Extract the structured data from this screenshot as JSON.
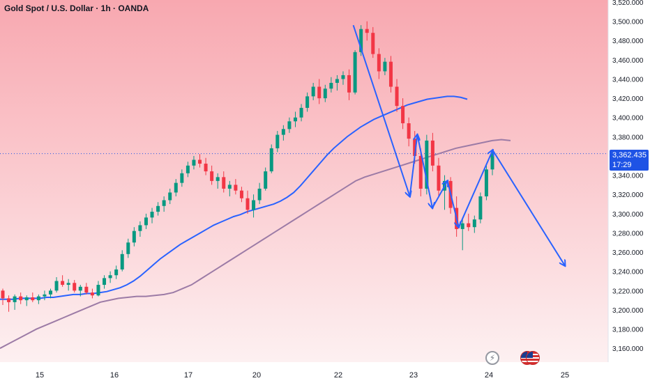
{
  "header": {
    "title": "Gold Spot / U.S. Dollar · 1h · OANDA"
  },
  "price_badge": {
    "price": "3,362.435",
    "countdown": "17:29",
    "color": "#1e53e5"
  },
  "colors": {
    "up": "#089981",
    "down": "#f23645",
    "ma_fast": "#2962ff",
    "ma_slow": "#9c7ba6",
    "annotation": "#2962ff",
    "background_top": "#f8a8b0",
    "background_bottom": "#fdf0f1"
  },
  "icons": [
    "flash-icon",
    "us-flag-icon",
    "us-flag-icon"
  ],
  "chart_data": {
    "type": "candlestick",
    "title": "Gold Spot / U.S. Dollar · 1h · OANDA",
    "ylim": [
      3150,
      3520
    ],
    "y_ticks": [
      3160,
      3180,
      3200,
      3220,
      3240,
      3260,
      3280,
      3300,
      3320,
      3340,
      3360,
      3380,
      3400,
      3420,
      3440,
      3460,
      3480,
      3500,
      3520
    ],
    "y_tick_labels": [
      "3,160.000",
      "3,180.000",
      "3,200.000",
      "3,220.000",
      "3,240.000",
      "3,260.000",
      "3,280.000",
      "3,300.000",
      "3,320.000",
      "3,340.000",
      "3,360.000",
      "3,380.000",
      "3,400.000",
      "3,420.000",
      "3,440.000",
      "3,460.000",
      "3,480.000",
      "3,500.000",
      "3,520.000"
    ],
    "x_ticks": [
      "15",
      "16",
      "17",
      "20",
      "22",
      "23",
      "24",
      "25"
    ],
    "current_price": 3362.435,
    "series": [
      {
        "kind": "ohlc",
        "points": [
          [
            3220,
            3222,
            3205,
            3212
          ],
          [
            3212,
            3215,
            3198,
            3208
          ],
          [
            3208,
            3216,
            3200,
            3214
          ],
          [
            3214,
            3218,
            3206,
            3210
          ],
          [
            3210,
            3215,
            3204,
            3213
          ],
          [
            3213,
            3218,
            3208,
            3210
          ],
          [
            3210,
            3216,
            3206,
            3214
          ],
          [
            3214,
            3220,
            3210,
            3216
          ],
          [
            3216,
            3222,
            3212,
            3220
          ],
          [
            3220,
            3234,
            3218,
            3230
          ],
          [
            3230,
            3236,
            3224,
            3226
          ],
          [
            3226,
            3232,
            3220,
            3228
          ],
          [
            3228,
            3231,
            3218,
            3220
          ],
          [
            3220,
            3226,
            3214,
            3224
          ],
          [
            3224,
            3228,
            3216,
            3218
          ],
          [
            3218,
            3222,
            3212,
            3215
          ],
          [
            3215,
            3230,
            3214,
            3226
          ],
          [
            3226,
            3236,
            3222,
            3233
          ],
          [
            3233,
            3240,
            3228,
            3236
          ],
          [
            3236,
            3246,
            3232,
            3242
          ],
          [
            3242,
            3262,
            3240,
            3258
          ],
          [
            3258,
            3274,
            3254,
            3270
          ],
          [
            3270,
            3286,
            3266,
            3282
          ],
          [
            3282,
            3292,
            3276,
            3288
          ],
          [
            3288,
            3300,
            3284,
            3296
          ],
          [
            3296,
            3306,
            3290,
            3302
          ],
          [
            3302,
            3312,
            3298,
            3308
          ],
          [
            3308,
            3318,
            3302,
            3314
          ],
          [
            3314,
            3326,
            3310,
            3322
          ],
          [
            3322,
            3336,
            3318,
            3332
          ],
          [
            3332,
            3346,
            3328,
            3342
          ],
          [
            3342,
            3354,
            3338,
            3350
          ],
          [
            3350,
            3360,
            3346,
            3356
          ],
          [
            3356,
            3362,
            3348,
            3352
          ],
          [
            3352,
            3358,
            3340,
            3344
          ],
          [
            3344,
            3350,
            3330,
            3334
          ],
          [
            3334,
            3342,
            3326,
            3338
          ],
          [
            3338,
            3344,
            3322,
            3326
          ],
          [
            3326,
            3334,
            3318,
            3330
          ],
          [
            3330,
            3336,
            3320,
            3324
          ],
          [
            3324,
            3328,
            3312,
            3316
          ],
          [
            3316,
            3324,
            3300,
            3304
          ],
          [
            3304,
            3320,
            3296,
            3314
          ],
          [
            3314,
            3332,
            3310,
            3326
          ],
          [
            3326,
            3348,
            3324,
            3344
          ],
          [
            3344,
            3372,
            3342,
            3368
          ],
          [
            3368,
            3386,
            3364,
            3382
          ],
          [
            3382,
            3392,
            3376,
            3388
          ],
          [
            3388,
            3400,
            3384,
            3396
          ],
          [
            3396,
            3406,
            3390,
            3400
          ],
          [
            3400,
            3414,
            3396,
            3410
          ],
          [
            3410,
            3426,
            3406,
            3422
          ],
          [
            3422,
            3436,
            3418,
            3432
          ],
          [
            3432,
            3440,
            3414,
            3420
          ],
          [
            3420,
            3434,
            3416,
            3430
          ],
          [
            3430,
            3442,
            3426,
            3436
          ],
          [
            3436,
            3444,
            3428,
            3440
          ],
          [
            3440,
            3448,
            3434,
            3444
          ],
          [
            3444,
            3450,
            3418,
            3426
          ],
          [
            3426,
            3470,
            3424,
            3468
          ],
          [
            3468,
            3496,
            3464,
            3492
          ],
          [
            3492,
            3500,
            3480,
            3488
          ],
          [
            3488,
            3494,
            3462,
            3466
          ],
          [
            3466,
            3472,
            3440,
            3448
          ],
          [
            3448,
            3462,
            3444,
            3458
          ],
          [
            3458,
            3464,
            3426,
            3432
          ],
          [
            3432,
            3440,
            3406,
            3412
          ],
          [
            3412,
            3420,
            3388,
            3394
          ],
          [
            3394,
            3400,
            3370,
            3378
          ],
          [
            3378,
            3386,
            3352,
            3360
          ],
          [
            3360,
            3368,
            3318,
            3326
          ],
          [
            3326,
            3382,
            3320,
            3376
          ],
          [
            3376,
            3384,
            3344,
            3350
          ],
          [
            3350,
            3358,
            3318,
            3324
          ],
          [
            3324,
            3340,
            3304,
            3334
          ],
          [
            3334,
            3338,
            3300,
            3306
          ],
          [
            3306,
            3318,
            3276,
            3284
          ],
          [
            3284,
            3296,
            3262,
            3290
          ],
          [
            3290,
            3300,
            3282,
            3286
          ],
          [
            3286,
            3298,
            3280,
            3294
          ],
          [
            3294,
            3322,
            3290,
            3318
          ],
          [
            3318,
            3352,
            3314,
            3346
          ],
          [
            3346,
            3366,
            3340,
            3362
          ]
        ]
      },
      {
        "name": "",
        "kind": "moving_average_fast",
        "values": [
          3211,
          3211,
          3211,
          3212,
          3212,
          3212,
          3212,
          3213,
          3213,
          3214,
          3215,
          3216,
          3216,
          3217,
          3217,
          3218,
          3219,
          3221,
          3223,
          3226,
          3230,
          3235,
          3241,
          3247,
          3253,
          3258,
          3263,
          3268,
          3272,
          3276,
          3280,
          3284,
          3288,
          3291,
          3294,
          3297,
          3299,
          3302,
          3304,
          3306,
          3308,
          3310,
          3313,
          3317,
          3322,
          3329,
          3337,
          3345,
          3353,
          3361,
          3368,
          3374,
          3380,
          3385,
          3390,
          3394,
          3398,
          3401,
          3404,
          3407,
          3410,
          3413,
          3415,
          3417,
          3419,
          3420,
          3421,
          3422,
          3422,
          3421,
          3419
        ]
      },
      {
        "name": "",
        "kind": "moving_average_slow",
        "values": [
          3160,
          3165,
          3170,
          3175,
          3180,
          3184,
          3188,
          3192,
          3196,
          3200,
          3204,
          3208,
          3210,
          3212,
          3213,
          3214,
          3214,
          3215,
          3216,
          3218,
          3222,
          3226,
          3232,
          3238,
          3244,
          3250,
          3256,
          3262,
          3268,
          3274,
          3280,
          3286,
          3292,
          3298,
          3304,
          3310,
          3316,
          3322,
          3328,
          3334,
          3338,
          3341,
          3344,
          3347,
          3350,
          3353,
          3356,
          3359,
          3362,
          3365,
          3368,
          3370,
          3372,
          3374,
          3376,
          3377,
          3376
        ]
      }
    ],
    "annotations": [
      {
        "kind": "arrow",
        "from": [
          22.2,
          3496
        ],
        "to": [
          22.95,
          3318
        ]
      },
      {
        "kind": "arrow",
        "from": [
          22.95,
          3318
        ],
        "to": [
          23.05,
          3382
        ]
      },
      {
        "kind": "arrow",
        "from": [
          23.05,
          3382
        ],
        "to": [
          23.25,
          3306
        ]
      },
      {
        "kind": "arrow",
        "from": [
          23.25,
          3306
        ],
        "to": [
          23.45,
          3334
        ]
      },
      {
        "kind": "arrow",
        "from": [
          23.45,
          3334
        ],
        "to": [
          23.6,
          3286
        ]
      },
      {
        "kind": "arrow",
        "from": [
          23.6,
          3286
        ],
        "to": [
          24.05,
          3366
        ]
      },
      {
        "kind": "arrow",
        "from": [
          24.05,
          3366
        ],
        "to": [
          25.05,
          3246
        ]
      }
    ]
  }
}
